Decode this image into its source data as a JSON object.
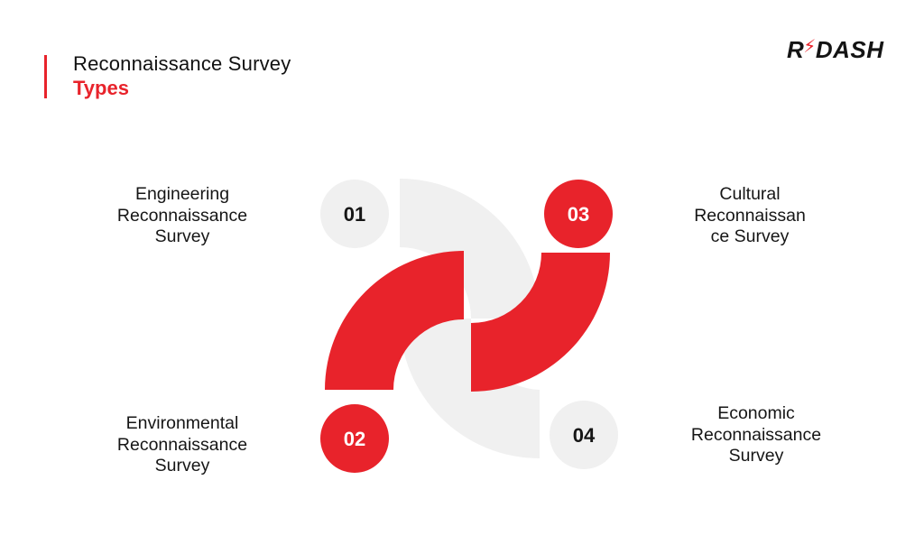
{
  "header": {
    "title_line1": "Reconnaissance Survey",
    "title_line2": "Types",
    "accent_color": "#e8232b"
  },
  "logo": {
    "part1": "R",
    "bolt": "⚡",
    "part2": "DASH"
  },
  "items": [
    {
      "number": "01",
      "label_lines": [
        "Engineering",
        "Reconnaissance",
        "Survey"
      ],
      "style": "gray"
    },
    {
      "number": "02",
      "label_lines": [
        "Environmental",
        "Reconnaissance",
        "Survey"
      ],
      "style": "red"
    },
    {
      "number": "03",
      "label_lines": [
        "Cultural",
        "Reconnaissan",
        "ce Survey"
      ],
      "style": "red"
    },
    {
      "number": "04",
      "label_lines": [
        "Economic",
        "Reconnaissance",
        "Survey"
      ],
      "style": "gray"
    }
  ],
  "colors": {
    "red": "#e8232b",
    "gray": "#f0f0f0",
    "text_dark": "#161616",
    "text_light": "#ffffff"
  }
}
